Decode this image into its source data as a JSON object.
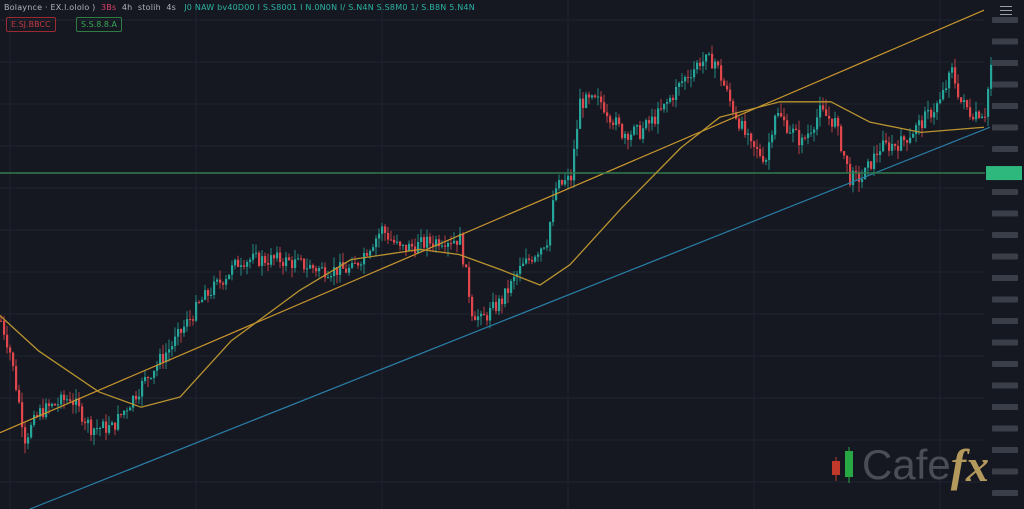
{
  "header": {
    "symbol": "Bolaynce · EX.l.ololo )",
    "timeframe": "3Bs",
    "interval": "4h",
    "indicator": "stolih",
    "mode": "4s",
    "ohlc": "J0 NAW bv40D00 I S.S8001 I N.0N0N I/ S.N4N S.S8M0 1/ S.B8N 5.N4N"
  },
  "badges": {
    "sell": "E.SJ.BBCC",
    "buy": "S.S.8.8.A"
  },
  "logo": {
    "text_cafe": "Cafe",
    "text_fx": "fx",
    "color_fx": "#b3995c"
  },
  "colors": {
    "up": "#26a69a",
    "down": "#e0474c",
    "trendline": "#c9962e",
    "ma": "#b8932f",
    "support": "#2a7fa8",
    "level": "#2f7d4f",
    "background": "#151821"
  },
  "chart_data": {
    "type": "candlestick",
    "title": "",
    "xlabel": "",
    "ylabel": "",
    "ylim": [
      0,
      100
    ],
    "grid": true,
    "price_path": {
      "bar": [
        0,
        3,
        8,
        13,
        23,
        30,
        37,
        43,
        50,
        58,
        67,
        80,
        93,
        107,
        117,
        127,
        133,
        147,
        153,
        157,
        160,
        167,
        173,
        182,
        185,
        190,
        193,
        200,
        207,
        213,
        220,
        227,
        233,
        238,
        243,
        250,
        255,
        258,
        267,
        273,
        278,
        283,
        287,
        293,
        300,
        307,
        313,
        317,
        320,
        323,
        328,
        330
      ],
      "price": [
        37,
        31,
        14,
        19,
        22,
        16,
        16,
        21,
        27,
        33,
        41,
        49,
        49,
        47,
        47,
        55,
        51,
        53,
        53,
        39,
        37,
        41,
        47,
        53,
        63,
        65,
        80,
        80,
        74,
        74,
        78,
        84,
        88,
        88,
        80,
        71,
        69,
        78,
        72,
        78,
        76,
        65,
        65,
        71,
        72,
        76,
        80,
        86,
        80,
        78,
        78,
        87
      ]
    },
    "trendline": {
      "from": {
        "bar": 0,
        "price": 15
      },
      "to": {
        "bar": 328,
        "price": 98
      }
    },
    "support_line": {
      "from": {
        "bar": 10,
        "price": 0
      },
      "to": {
        "bar": 330,
        "price": 75
      }
    },
    "level": 66,
    "moving_average": {
      "bar": [
        0,
        13,
        33,
        47,
        60,
        77,
        100,
        117,
        140,
        153,
        167,
        180,
        190,
        207,
        227,
        240,
        260,
        277,
        290,
        307,
        328
      ],
      "price": [
        38,
        31,
        23,
        20,
        22,
        33,
        43,
        49,
        51,
        50,
        47,
        44,
        48,
        59,
        71,
        77,
        80,
        80,
        76,
        74,
        75
      ]
    }
  }
}
